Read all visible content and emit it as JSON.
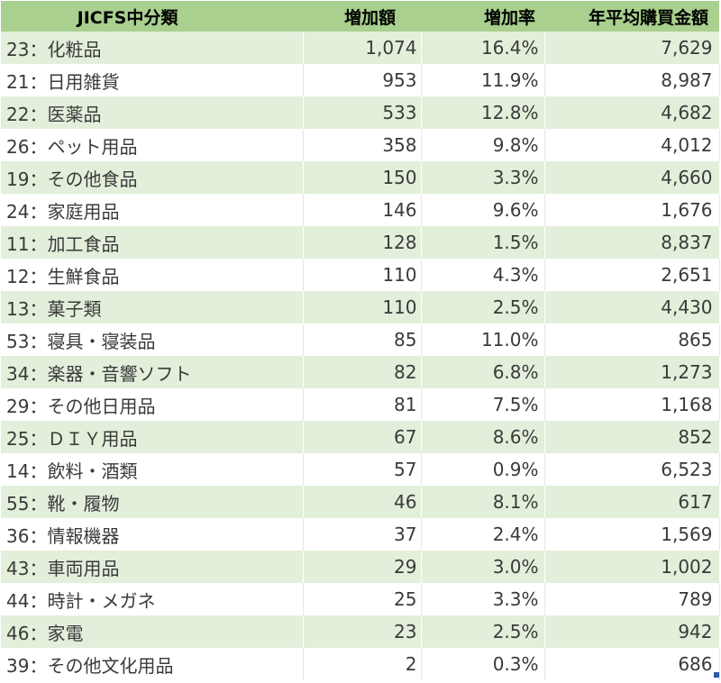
{
  "headers": {
    "category": "JICFS中分類",
    "increase": "増加額",
    "rate": "増加率",
    "avg": "年平均購買金額"
  },
  "rows": [
    {
      "name": "23：化粧品",
      "increase": "1,074",
      "rate": "16.4%",
      "avg": "7,629"
    },
    {
      "name": "21：日用雑貨",
      "increase": "953",
      "rate": "11.9%",
      "avg": "8,987"
    },
    {
      "name": "22：医薬品",
      "increase": "533",
      "rate": "12.8%",
      "avg": "4,682"
    },
    {
      "name": "26：ペット用品",
      "increase": "358",
      "rate": "9.8%",
      "avg": "4,012"
    },
    {
      "name": "19：その他食品",
      "increase": "150",
      "rate": "3.3%",
      "avg": "4,660"
    },
    {
      "name": "24：家庭用品",
      "increase": "146",
      "rate": "9.6%",
      "avg": "1,676"
    },
    {
      "name": "11：加工食品",
      "increase": "128",
      "rate": "1.5%",
      "avg": "8,837"
    },
    {
      "name": "12：生鮮食品",
      "increase": "110",
      "rate": "4.3%",
      "avg": "2,651"
    },
    {
      "name": "13：菓子類",
      "increase": "110",
      "rate": "2.5%",
      "avg": "4,430"
    },
    {
      "name": "53：寝具・寝装品",
      "increase": "85",
      "rate": "11.0%",
      "avg": "865"
    },
    {
      "name": "34：楽器・音響ソフト",
      "increase": "82",
      "rate": "6.8%",
      "avg": "1,273"
    },
    {
      "name": "29：その他日用品",
      "increase": "81",
      "rate": "7.5%",
      "avg": "1,168"
    },
    {
      "name": "25：ＤＩＹ用品",
      "increase": "67",
      "rate": "8.6%",
      "avg": "852"
    },
    {
      "name": "14：飲料・酒類",
      "increase": "57",
      "rate": "0.9%",
      "avg": "6,523"
    },
    {
      "name": "55：靴・履物",
      "increase": "46",
      "rate": "8.1%",
      "avg": "617"
    },
    {
      "name": "36：情報機器",
      "increase": "37",
      "rate": "2.4%",
      "avg": "1,569"
    },
    {
      "name": "43：車両用品",
      "increase": "29",
      "rate": "3.0%",
      "avg": "1,002"
    },
    {
      "name": "44：時計・メガネ",
      "increase": "25",
      "rate": "3.3%",
      "avg": "789"
    },
    {
      "name": "46：家電",
      "increase": "23",
      "rate": "2.5%",
      "avg": "942"
    },
    {
      "name": "39：その他文化用品",
      "increase": "2",
      "rate": "0.3%",
      "avg": "686"
    }
  ]
}
